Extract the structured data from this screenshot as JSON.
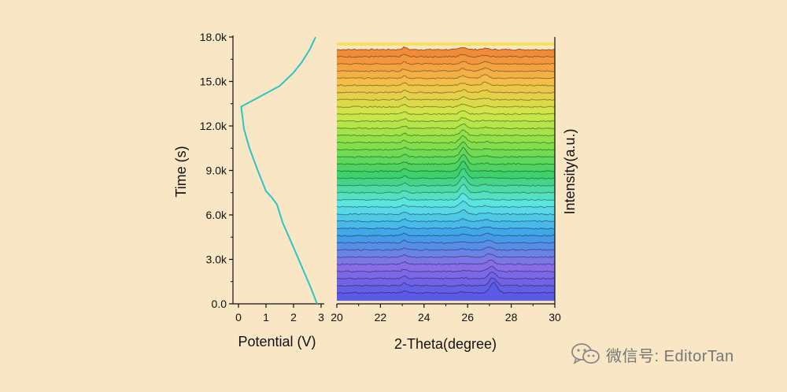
{
  "background": "#f8e6c4",
  "watermark": {
    "icon": "wechat-icon",
    "text": "微信号: EditorTan"
  },
  "chart_data": [
    {
      "type": "line",
      "xlabel": "Potential (V)",
      "ylabel": "Time (s)",
      "xlim": [
        0,
        3
      ],
      "ylim": [
        0,
        18000
      ],
      "xticks": [
        0,
        1,
        2,
        3
      ],
      "xtick_labels": [
        "0",
        "1",
        "2",
        "3"
      ],
      "yticks": [
        0,
        3000,
        6000,
        9000,
        12000,
        15000,
        18000
      ],
      "ytick_labels": [
        "0.0",
        "3.0k",
        "6.0k",
        "9.0k",
        "12.0k",
        "15.0k",
        "18.0k"
      ],
      "line_color": "#2ec4c4",
      "series": [
        {
          "x": [
            2.85,
            2.75,
            2.6,
            2.3,
            2.0,
            1.6,
            1.4,
            1.2,
            1.0,
            0.7,
            0.4,
            0.2,
            0.1,
            0.6,
            1.5,
            2.0,
            2.3,
            2.6,
            2.8
          ],
          "y": [
            0,
            500,
            1200,
            2500,
            3800,
            5500,
            6700,
            7200,
            7600,
            9000,
            10500,
            11800,
            13300,
            13800,
            14700,
            15600,
            16300,
            17200,
            18000
          ]
        }
      ]
    },
    {
      "type": "area",
      "xlabel": "2-Theta(degree)",
      "ylabel": "Intensity(a.u.)",
      "xlim": [
        20,
        30
      ],
      "xticks": [
        20,
        22,
        24,
        26,
        28,
        30
      ],
      "xtick_labels": [
        "20",
        "22",
        "24",
        "26",
        "28",
        "30"
      ],
      "grid": false,
      "description": "waterfall of XRD patterns stacked bottom (t=0) to top (t=18k s), colored violet-blue-cyan-green-yellow-orange",
      "palette": [
        "#5a5ae6",
        "#8a6ee6",
        "#3da0e8",
        "#5ee6e6",
        "#3ed06a",
        "#86e04a",
        "#cfe84a",
        "#f4c04a",
        "#f28a3a"
      ],
      "n_patterns": 35,
      "peaks": [
        {
          "position": 23.1,
          "note": "weak peak present in all patterns"
        },
        {
          "position": 25.8,
          "note": "grows in middle patterns"
        },
        {
          "position": 27.0,
          "note": "strong in lowest patterns, weakens then returns"
        }
      ]
    }
  ]
}
